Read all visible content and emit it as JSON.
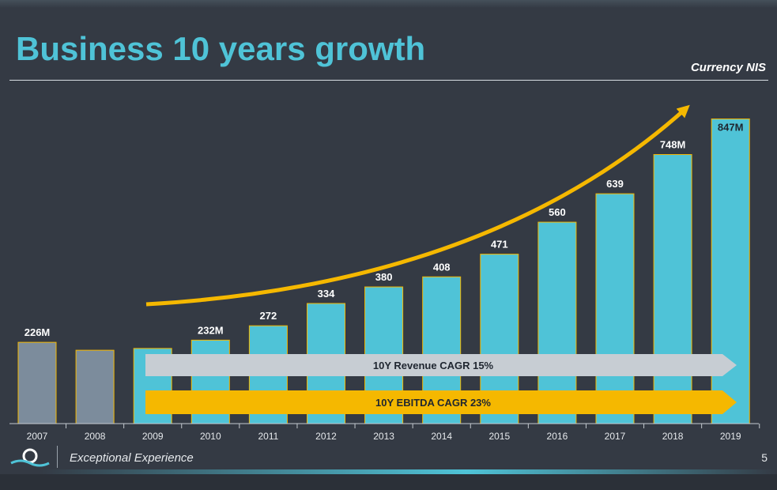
{
  "title": "Business 10 years growth",
  "currency_note": "Currency NIS",
  "footer": {
    "tagline": "Exceptional Experience",
    "page_number": "5"
  },
  "colors": {
    "background": "#343a44",
    "accent": "#4fc3d7",
    "historical_bar": "#7c8c9c",
    "bar_outline": "#f5b800",
    "growth_arrow": "#f5b800",
    "revenue_arrow": "#c7cdd3",
    "ebitda_arrow": "#f5b800"
  },
  "chart_data": {
    "type": "bar",
    "categories": [
      "2007",
      "2008",
      "2009",
      "2010",
      "2011",
      "2012",
      "2013",
      "2014",
      "2015",
      "2016",
      "2017",
      "2018",
      "2019"
    ],
    "values": [
      226,
      204,
      209,
      232,
      272,
      334,
      380,
      408,
      471,
      560,
      639,
      748,
      847
    ],
    "data_labels": [
      "226M",
      "",
      "",
      "232M",
      "272",
      "334",
      "380",
      "408",
      "471",
      "560",
      "639",
      "748M",
      "847M"
    ],
    "bar_styles": [
      "historical",
      "historical",
      "current",
      "current",
      "current",
      "current",
      "current",
      "current",
      "current",
      "current",
      "current",
      "current",
      "current"
    ],
    "ylim": [
      0,
      870
    ],
    "units": "M NIS",
    "annotations": {
      "revenue_cagr": "10Y Revenue CAGR 15%",
      "ebitda_cagr": "10Y EBITDA CAGR 23%",
      "growth_arrow": "upward trend arrow over 2009–2019"
    }
  }
}
